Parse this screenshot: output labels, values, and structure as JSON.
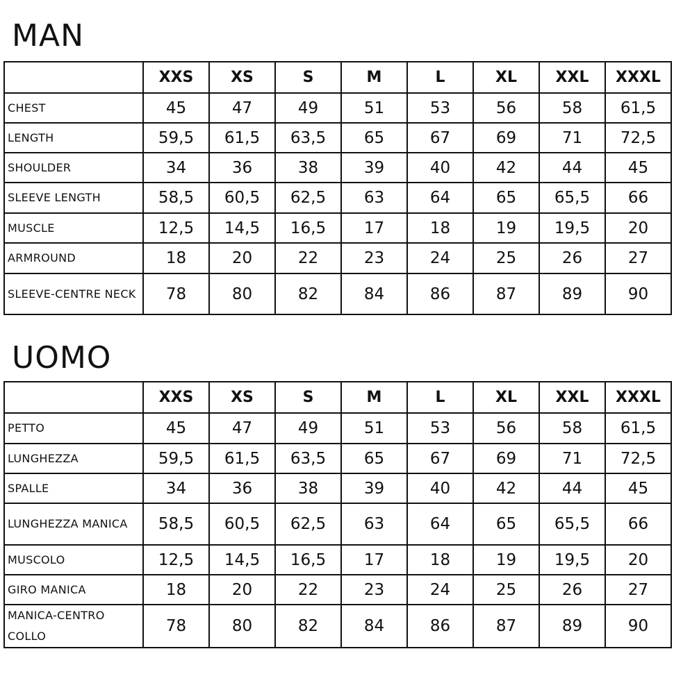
{
  "sections": [
    {
      "title": "MAN",
      "sizes": [
        "XXS",
        "XS",
        "S",
        "M",
        "L",
        "XL",
        "XXL",
        "XXXL"
      ],
      "rows": [
        {
          "label": "CHEST",
          "values": [
            "45",
            "47",
            "49",
            "51",
            "53",
            "56",
            "58",
            "61,5"
          ]
        },
        {
          "label": "LENGTH",
          "values": [
            "59,5",
            "61,5",
            "63,5",
            "65",
            "67",
            "69",
            "71",
            "72,5"
          ]
        },
        {
          "label": "SHOULDER",
          "values": [
            "34",
            "36",
            "38",
            "39",
            "40",
            "42",
            "44",
            "45"
          ]
        },
        {
          "label": "SLEEVE LENGTH",
          "values": [
            "58,5",
            "60,5",
            "62,5",
            "63",
            "64",
            "65",
            "65,5",
            "66"
          ]
        },
        {
          "label": "MUSCLE",
          "values": [
            "12,5",
            "14,5",
            "16,5",
            "17",
            "18",
            "19",
            "19,5",
            "20"
          ]
        },
        {
          "label": "ARMROUND",
          "values": [
            "18",
            "20",
            "22",
            "23",
            "24",
            "25",
            "26",
            "27"
          ]
        },
        {
          "label": "SLEEVE-CENTRE NECK",
          "values": [
            "78",
            "80",
            "82",
            "84",
            "86",
            "87",
            "89",
            "90"
          ]
        }
      ]
    },
    {
      "title": "UOMO",
      "sizes": [
        "XXS",
        "XS",
        "S",
        "M",
        "L",
        "XL",
        "XXL",
        "XXXL"
      ],
      "rows": [
        {
          "label": "PETTO",
          "values": [
            "45",
            "47",
            "49",
            "51",
            "53",
            "56",
            "58",
            "61,5"
          ]
        },
        {
          "label": "LUNGHEZZA",
          "values": [
            "59,5",
            "61,5",
            "63,5",
            "65",
            "67",
            "69",
            "71",
            "72,5"
          ]
        },
        {
          "label": "SPALLE",
          "values": [
            "34",
            "36",
            "38",
            "39",
            "40",
            "42",
            "44",
            "45"
          ]
        },
        {
          "label": "LUNGHEZZA MANICA",
          "values": [
            "58,5",
            "60,5",
            "62,5",
            "63",
            "64",
            "65",
            "65,5",
            "66"
          ]
        },
        {
          "label": "MUSCOLO",
          "values": [
            "12,5",
            "14,5",
            "16,5",
            "17",
            "18",
            "19",
            "19,5",
            "20"
          ]
        },
        {
          "label": "GIRO MANICA",
          "values": [
            "18",
            "20",
            "22",
            "23",
            "24",
            "25",
            "26",
            "27"
          ]
        },
        {
          "label": "MANICA-CENTRO COLLO",
          "values": [
            "78",
            "80",
            "82",
            "84",
            "86",
            "87",
            "89",
            "90"
          ]
        }
      ]
    }
  ]
}
